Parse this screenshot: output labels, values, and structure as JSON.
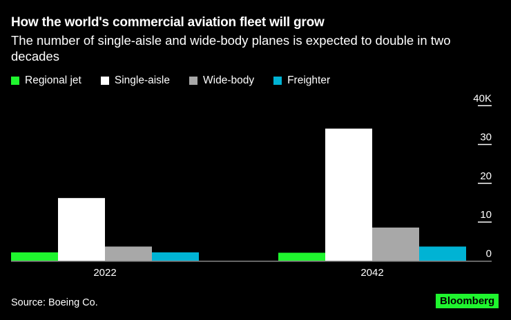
{
  "chart_data": {
    "type": "bar",
    "title": "How the world's commercial aviation fleet will grow",
    "subtitle": "The number of single-aisle and wide-body planes is expected to double in two decades",
    "categories": [
      "2022",
      "2042"
    ],
    "series": [
      {
        "name": "Regional jet",
        "color": "#1ff52e",
        "values": [
          2.2,
          2.1
        ]
      },
      {
        "name": "Single-aisle",
        "color": "#ffffff",
        "values": [
          16.2,
          34.1
        ]
      },
      {
        "name": "Wide-body",
        "color": "#a8a8a8",
        "values": [
          3.7,
          8.6
        ]
      },
      {
        "name": "Freighter",
        "color": "#00b3d4",
        "values": [
          2.2,
          3.7
        ]
      }
    ],
    "yticks": [
      {
        "value": 0,
        "label": "0"
      },
      {
        "value": 10,
        "label": "10"
      },
      {
        "value": 20,
        "label": "20"
      },
      {
        "value": 30,
        "label": "30"
      },
      {
        "value": 40,
        "label": "40K"
      }
    ],
    "ylim": [
      0,
      40
    ],
    "y_unit": "thousands",
    "axis_position": "right",
    "grid": false,
    "legend_position": "top-left",
    "source": "Source: Boeing Co.",
    "brand": "Bloomberg"
  }
}
